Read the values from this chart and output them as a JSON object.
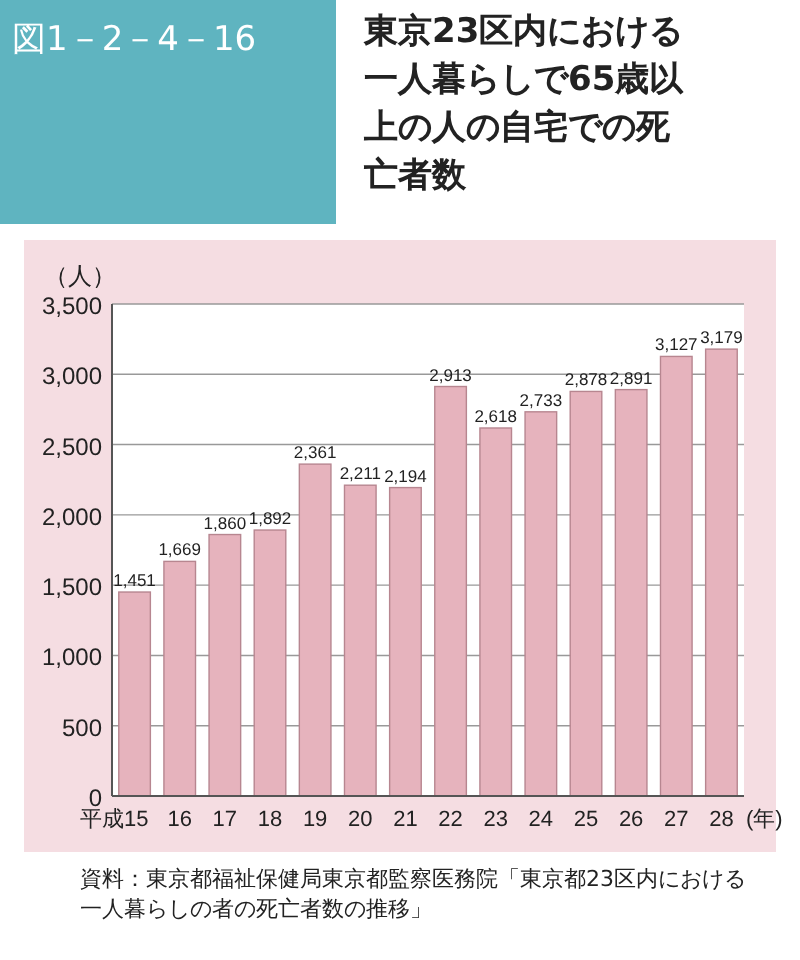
{
  "chart_data": {
    "type": "bar",
    "title": "東京23区内における一人暮らしで65歳以上の人の自宅での死亡者数",
    "subtitle": "図1－2－4－16",
    "ylabel": "（人）",
    "xlabel": "(年)",
    "categories": [
      "平成15",
      "16",
      "17",
      "18",
      "19",
      "20",
      "21",
      "22",
      "23",
      "24",
      "25",
      "26",
      "27",
      "28"
    ],
    "values": [
      1451,
      1669,
      1860,
      1892,
      2361,
      2211,
      2194,
      2913,
      2618,
      2733,
      2878,
      2891,
      3127,
      3179
    ],
    "value_labels": [
      "1,451",
      "1,669",
      "1,860",
      "1,892",
      "2,361",
      "2,211",
      "2,194",
      "2,913",
      "2,618",
      "2,733",
      "2,878",
      "2,891",
      "3,127",
      "3,179"
    ],
    "color": "#e6b3bd",
    "ylim": [
      0,
      3500
    ],
    "yticks": [
      {
        "value": 0,
        "label": "0"
      },
      {
        "value": 500,
        "label": "500"
      },
      {
        "value": 1000,
        "label": "1,000"
      },
      {
        "value": 1500,
        "label": "1,500"
      },
      {
        "value": 2000,
        "label": "2,000"
      },
      {
        "value": 2500,
        "label": "2,500"
      },
      {
        "value": 3000,
        "label": "3,000"
      },
      {
        "value": 3500,
        "label": "3,500"
      }
    ],
    "grid": "y",
    "annotations": [
      "資料：東京都福祉保健局東京都監察医務院「東京都23区内における一人暮らしの者の死亡者数の推移」"
    ]
  }
}
